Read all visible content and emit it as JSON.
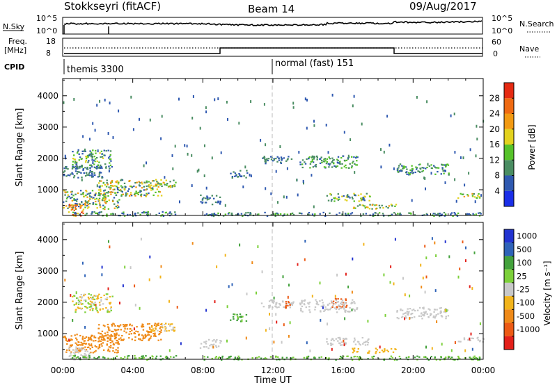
{
  "header": {
    "radar": "Stokkseyri (fitACF)",
    "beam": "Beam 14",
    "date": "09/Aug/2017"
  },
  "strip": {
    "nsky_label": "N.Sky",
    "nsearch_label": "N.Search",
    "freq_label_1": "Freq.",
    "freq_label_2": "[MHz]",
    "nave_label": "Nave",
    "cpid_label": "CPID",
    "nsky_ticks": [
      "10^5",
      "10^0"
    ],
    "nsearch_ticks": [
      "10^5",
      "10^0"
    ],
    "freq_ticks": [
      "18",
      "8"
    ],
    "nave_ticks": [
      "60",
      "0"
    ],
    "cpid_modes": [
      "themis 3300",
      "normal (fast) 151"
    ]
  },
  "colorbars": {
    "power": {
      "label": "Power [dB]",
      "ticks": [
        "4",
        "8",
        "12",
        "16",
        "20",
        "24",
        "28"
      ],
      "colors": [
        "#1a2ee8",
        "#2f59b0",
        "#4a8d62",
        "#56c22a",
        "#e3d21e",
        "#f29a12",
        "#ef6a12",
        "#e52a12"
      ]
    },
    "velocity": {
      "label": "Velocity [m s⁻¹]",
      "ticks": [
        "1000",
        "500",
        "100",
        "25",
        "-25",
        "-100",
        "-500",
        "-1000"
      ],
      "colors": [
        "#2233d0",
        "#2f63b8",
        "#43a13c",
        "#7cd03a",
        "#c8c8c8",
        "#f2b41c",
        "#ef8a18",
        "#ec5a14",
        "#e3201a"
      ]
    }
  },
  "chart_data": [
    {
      "type": "heatmap",
      "title": "Power",
      "xlabel": "Time UT",
      "ylabel": "Slant Range [km]",
      "x_ticks": [
        "00:00",
        "04:00",
        "08:00",
        "12:00",
        "16:00",
        "20:00",
        "00:00"
      ],
      "y_ticks": [
        "1000",
        "2000",
        "3000",
        "4000"
      ],
      "xlim_hours": [
        0,
        24
      ],
      "ylim_km": [
        180,
        4550
      ],
      "zlim_db": [
        0,
        32
      ],
      "regions": [
        {
          "t0": 0.0,
          "t1": 3.2,
          "r0": 400,
          "r1": 1000,
          "z0": 4,
          "z1": 24
        },
        {
          "t0": 0.3,
          "t1": 1.2,
          "r0": 180,
          "r1": 550,
          "z0": 18,
          "z1": 30
        },
        {
          "t0": 0.5,
          "t1": 6.5,
          "r0": 180,
          "r1": 320,
          "z0": 4,
          "z1": 14
        },
        {
          "t0": 2.0,
          "t1": 5.6,
          "r0": 800,
          "r1": 1350,
          "z0": 6,
          "z1": 24
        },
        {
          "t0": 0.5,
          "t1": 2.8,
          "r0": 1700,
          "r1": 2300,
          "z0": 4,
          "z1": 18
        },
        {
          "t0": 0.0,
          "t1": 2.3,
          "r0": 1400,
          "r1": 1800,
          "z0": 4,
          "z1": 12
        },
        {
          "t0": 5.0,
          "t1": 6.5,
          "r0": 1100,
          "r1": 1350,
          "z0": 8,
          "z1": 22
        },
        {
          "t0": 7.8,
          "t1": 9.0,
          "r0": 550,
          "r1": 850,
          "z0": 4,
          "z1": 12
        },
        {
          "t0": 9.5,
          "t1": 10.5,
          "r0": 1400,
          "r1": 1650,
          "z0": 4,
          "z1": 12
        },
        {
          "t0": 11.3,
          "t1": 13.2,
          "r0": 1850,
          "r1": 2100,
          "z0": 4,
          "z1": 12
        },
        {
          "t0": 13.5,
          "t1": 16.8,
          "r0": 1700,
          "r1": 2100,
          "z0": 4,
          "z1": 16
        },
        {
          "t0": 15.0,
          "t1": 17.5,
          "r0": 650,
          "r1": 900,
          "z0": 6,
          "z1": 20
        },
        {
          "t0": 16.5,
          "t1": 19.0,
          "r0": 400,
          "r1": 560,
          "z0": 8,
          "z1": 24
        },
        {
          "t0": 19.0,
          "t1": 22.0,
          "r0": 1500,
          "r1": 1850,
          "z0": 4,
          "z1": 16
        },
        {
          "t0": 22.5,
          "t1": 24.0,
          "r0": 750,
          "r1": 900,
          "z0": 8,
          "z1": 22
        },
        {
          "t0": 8.0,
          "t1": 24.0,
          "r0": 180,
          "r1": 300,
          "z0": 4,
          "z1": 14
        }
      ]
    },
    {
      "type": "heatmap",
      "title": "Velocity",
      "xlabel": "Time UT",
      "ylabel": "Slant Range [km]",
      "x_ticks": [
        "00:00",
        "04:00",
        "08:00",
        "12:00",
        "16:00",
        "20:00",
        "00:00"
      ],
      "y_ticks": [
        "1000",
        "2000",
        "3000",
        "4000"
      ],
      "xlim_hours": [
        0,
        24
      ],
      "ylim_km": [
        180,
        4550
      ],
      "zlim_ms": [
        -1000,
        1000
      ],
      "regions": [
        {
          "t0": 0.0,
          "t1": 3.2,
          "r0": 400,
          "r1": 1000,
          "z0": -500,
          "z1": -100
        },
        {
          "t0": 0.3,
          "t1": 1.5,
          "r0": 180,
          "r1": 600,
          "z0": -25,
          "z1": 25
        },
        {
          "t0": 2.0,
          "t1": 5.6,
          "r0": 800,
          "r1": 1350,
          "z0": -500,
          "z1": -100
        },
        {
          "t0": 0.5,
          "t1": 2.8,
          "r0": 1700,
          "r1": 2300,
          "z0": -100,
          "z1": 100
        },
        {
          "t0": 0.5,
          "t1": 6.5,
          "r0": 180,
          "r1": 320,
          "z0": 25,
          "z1": 200
        },
        {
          "t0": 5.0,
          "t1": 6.5,
          "r0": 1100,
          "r1": 1350,
          "z0": -100,
          "z1": 25
        },
        {
          "t0": 7.8,
          "t1": 9.0,
          "r0": 550,
          "r1": 850,
          "z0": -25,
          "z1": 25
        },
        {
          "t0": 9.5,
          "t1": 10.5,
          "r0": 1400,
          "r1": 1650,
          "z0": 25,
          "z1": 500
        },
        {
          "t0": 11.3,
          "t1": 13.2,
          "r0": 1850,
          "r1": 2100,
          "z0": -25,
          "z1": 25
        },
        {
          "t0": 12.5,
          "t1": 13.0,
          "r0": 1800,
          "r1": 2050,
          "z0": -1000,
          "z1": -500
        },
        {
          "t0": 15.3,
          "t1": 16.2,
          "r0": 1850,
          "r1": 2150,
          "z0": -1000,
          "z1": -500
        },
        {
          "t0": 13.5,
          "t1": 16.8,
          "r0": 1700,
          "r1": 2100,
          "z0": -25,
          "z1": 25
        },
        {
          "t0": 15.0,
          "t1": 17.5,
          "r0": 650,
          "r1": 900,
          "z0": -25,
          "z1": 25
        },
        {
          "t0": 16.5,
          "t1": 19.0,
          "r0": 400,
          "r1": 560,
          "z0": -100,
          "z1": -25
        },
        {
          "t0": 19.0,
          "t1": 22.0,
          "r0": 1500,
          "r1": 1850,
          "z0": -25,
          "z1": 25
        },
        {
          "t0": 22.5,
          "t1": 24.0,
          "r0": 750,
          "r1": 900,
          "z0": -25,
          "z1": 25
        },
        {
          "t0": 8.0,
          "t1": 24.0,
          "r0": 180,
          "r1": 300,
          "z0": 25,
          "z1": 150
        }
      ]
    }
  ]
}
